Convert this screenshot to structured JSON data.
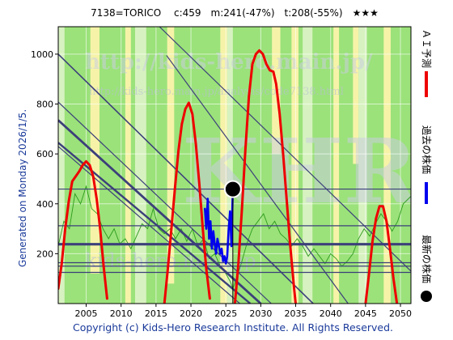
{
  "header": {
    "title": "7138=TORICO　 c:459　m:241(-47%)　t:208(-55%)　★★★"
  },
  "side_text": "Generated on Monday 2026/1/5.",
  "footer": "Copyright (c) Kids-Hero Research Institute. All Rights Reserved.",
  "watermark": {
    "url": "http://kids-hero.main.jp/",
    "sub": "http://kids-hero.main.jp/analysis/code7138.html",
    "big": "KHRI",
    "bottom": "kids-hero.main.jp"
  },
  "legend": [
    {
      "label": "ＡＩ予測",
      "color": "#ee0000",
      "marker": "line"
    },
    {
      "label": "過去の株価",
      "color": "#0000ee",
      "marker": "line"
    },
    {
      "label": "最新の株価",
      "color": "#000000",
      "marker": "dot"
    }
  ],
  "colors": {
    "green": "#9be27a",
    "yellow": "#f6f3a8",
    "lightgreen": "#d7f2c0",
    "trend": "#3c3f7a",
    "thin_green": "#2d9b1c",
    "prediction": "#ee0000",
    "past": "#0000ee"
  },
  "chart_data": {
    "type": "line",
    "title": "7138=TORICO　 c:459　m:241(-47%)　t:208(-55%)　★★★",
    "xlim": [
      2001,
      2051.5
    ],
    "ylim": [
      0,
      1110
    ],
    "x_ticks": [
      2005,
      2010,
      2015,
      2020,
      2025,
      2030,
      2035,
      2040,
      2045,
      2050
    ],
    "y_ticks": [
      200,
      400,
      600,
      800,
      1000
    ],
    "grid": true,
    "legend_placement": "right",
    "current_price": {
      "year": 2026.0,
      "value": 459
    },
    "horizontal_levels": [
      {
        "value": 459,
        "width": 1.2
      },
      {
        "value": 312,
        "width": 1.2
      },
      {
        "value": 238,
        "width": 3.2
      },
      {
        "value": 164,
        "width": 1.2
      },
      {
        "value": 150,
        "width": 1.2
      },
      {
        "value": 125,
        "width": 1.2
      }
    ],
    "trend_lines": [
      {
        "from": [
          2001,
          1000
        ],
        "to": [
          2037.5,
          0
        ],
        "width": 1.6
      },
      {
        "from": [
          2001,
          808
        ],
        "to": [
          2031.5,
          0
        ],
        "width": 1.2
      },
      {
        "from": [
          2001,
          735
        ],
        "to": [
          2030.0,
          0
        ],
        "width": 2.8
      },
      {
        "from": [
          2001,
          645
        ],
        "to": [
          2028.5,
          0
        ],
        "width": 2.4
      },
      {
        "from": [
          2001,
          630
        ],
        "to": [
          2027.0,
          0
        ],
        "width": 1.2
      },
      {
        "from": [
          2016.5,
          995
        ],
        "to": [
          2042.5,
          0
        ],
        "width": 1.2
      },
      {
        "from": [
          2015.5,
          1110
        ],
        "to": [
          2051.5,
          130
        ],
        "width": 1.2
      }
    ],
    "band_series": [
      [
        2001,
        700
      ],
      [
        2002,
        760
      ],
      [
        2003,
        1110
      ],
      [
        2004,
        1110
      ],
      [
        2005,
        1110
      ],
      [
        2006,
        1110
      ],
      [
        2007,
        1110
      ],
      [
        2008,
        1110
      ],
      [
        2009,
        1110
      ],
      [
        2010,
        1110
      ],
      [
        2011,
        1110
      ],
      [
        2012,
        1110
      ],
      [
        2013,
        1110
      ],
      [
        2014,
        1110
      ],
      [
        2015,
        1110
      ],
      [
        2016,
        1110
      ],
      [
        2017,
        1110
      ],
      [
        2018,
        1110
      ],
      [
        2019,
        1110
      ],
      [
        2020,
        1110
      ],
      [
        2021,
        1110
      ],
      [
        2022,
        1110
      ],
      [
        2023,
        1110
      ],
      [
        2024,
        1110
      ],
      [
        2025,
        1110
      ],
      [
        2026,
        1110
      ],
      [
        2027,
        1110
      ],
      [
        2028,
        1110
      ],
      [
        2029,
        1110
      ],
      [
        2030,
        1110
      ],
      [
        2031,
        1110
      ],
      [
        2032,
        1110
      ],
      [
        2033,
        1110
      ],
      [
        2034,
        1110
      ],
      [
        2035,
        1110
      ],
      [
        2036,
        1110
      ],
      [
        2037,
        1110
      ],
      [
        2038,
        1110
      ],
      [
        2039,
        1110
      ],
      [
        2040,
        1110
      ],
      [
        2041,
        1110
      ],
      [
        2042,
        1110
      ],
      [
        2043,
        1110
      ],
      [
        2044,
        1110
      ],
      [
        2045,
        1110
      ],
      [
        2046,
        1110
      ],
      [
        2047,
        1110
      ],
      [
        2048,
        1110
      ],
      [
        2049,
        1110
      ],
      [
        2050,
        1110
      ],
      [
        2051.5,
        1110
      ]
    ],
    "yellow_bands": [
      [
        2005.6,
        2006.9,
        120,
        1110
      ],
      [
        2010.6,
        2011.4,
        0,
        1110
      ],
      [
        2016.6,
        2017.6,
        80,
        1110
      ],
      [
        2024.2,
        2025.2,
        0,
        1110
      ],
      [
        2031.6,
        2032.8,
        600,
        1110
      ],
      [
        2034.4,
        2035.4,
        0,
        1110
      ],
      [
        2040.4,
        2041.2,
        0,
        1110
      ],
      [
        2043.2,
        2044.0,
        560,
        1110
      ],
      [
        2047.6,
        2048.6,
        0,
        1110
      ]
    ],
    "lightgreen_bands": [
      [
        2001.0,
        2001.9,
        0,
        1110
      ],
      [
        2012.0,
        2013.6,
        0,
        1110
      ],
      [
        2025.2,
        2026.0,
        0,
        1110
      ],
      [
        2036.0,
        2037.4,
        0,
        1110
      ],
      [
        2044.0,
        2045.2,
        0,
        1110
      ]
    ],
    "series": [
      {
        "name": "ＡＩ予測",
        "color": "#ee0000",
        "width": 3,
        "segments": [
          [
            [
              2001.0,
              60
            ],
            [
              2001.5,
              160
            ],
            [
              2002.0,
              300
            ],
            [
              2002.5,
              410
            ],
            [
              2003.0,
              490
            ],
            [
              2003.5,
              510
            ],
            [
              2004.0,
              530
            ],
            [
              2004.5,
              555
            ],
            [
              2005.0,
              570
            ],
            [
              2005.5,
              555
            ],
            [
              2006.0,
              510
            ],
            [
              2006.5,
              420
            ],
            [
              2007.0,
              300
            ],
            [
              2007.5,
              150
            ],
            [
              2008.0,
              20
            ]
          ],
          [
            [
              2016.2,
              0
            ],
            [
              2016.7,
              140
            ],
            [
              2017.2,
              300
            ],
            [
              2017.7,
              460
            ],
            [
              2018.2,
              610
            ],
            [
              2018.7,
              720
            ],
            [
              2019.2,
              780
            ],
            [
              2019.7,
              805
            ],
            [
              2020.2,
              760
            ],
            [
              2020.7,
              640
            ],
            [
              2021.2,
              480
            ],
            [
              2021.7,
              300
            ],
            [
              2022.2,
              140
            ],
            [
              2022.7,
              20
            ]
          ],
          [
            [
              2026.3,
              0
            ],
            [
              2026.8,
              160
            ],
            [
              2027.3,
              380
            ],
            [
              2027.8,
              620
            ],
            [
              2028.3,
              830
            ],
            [
              2028.8,
              960
            ],
            [
              2029.3,
              1000
            ],
            [
              2029.8,
              1015
            ],
            [
              2030.3,
              1000
            ],
            [
              2030.8,
              960
            ],
            [
              2031.3,
              935
            ],
            [
              2031.8,
              930
            ],
            [
              2032.2,
              880
            ],
            [
              2032.7,
              760
            ],
            [
              2033.2,
              600
            ],
            [
              2033.7,
              420
            ],
            [
              2034.2,
              240
            ],
            [
              2034.7,
              80
            ],
            [
              2035.0,
              0
            ]
          ],
          [
            [
              2045.0,
              0
            ],
            [
              2045.5,
              120
            ],
            [
              2046.0,
              250
            ],
            [
              2046.5,
              340
            ],
            [
              2047.0,
              390
            ],
            [
              2047.5,
              390
            ],
            [
              2048.0,
              330
            ],
            [
              2048.5,
              220
            ],
            [
              2049.0,
              100
            ],
            [
              2049.5,
              0
            ]
          ]
        ]
      },
      {
        "name": "過去の株価",
        "color": "#0000ee",
        "width": 2.6,
        "segments": [
          [
            [
              2022.0,
              380
            ],
            [
              2022.2,
              300
            ],
            [
              2022.4,
              420
            ],
            [
              2022.6,
              260
            ],
            [
              2022.8,
              330
            ],
            [
              2023.0,
              220
            ],
            [
              2023.2,
              290
            ],
            [
              2023.4,
              240
            ],
            [
              2023.6,
              200
            ],
            [
              2023.8,
              260
            ],
            [
              2024.0,
              230
            ],
            [
              2024.2,
              200
            ],
            [
              2024.4,
              220
            ],
            [
              2024.6,
              170
            ],
            [
              2024.8,
              190
            ],
            [
              2025.0,
              160
            ],
            [
              2025.2,
              190
            ],
            [
              2025.4,
              300
            ],
            [
              2025.6,
              370
            ],
            [
              2025.8,
              230
            ],
            [
              2026.0,
              459
            ]
          ]
        ]
      }
    ],
    "green_line": [
      [
        2001.0,
        230
      ],
      [
        2001.8,
        330
      ],
      [
        2002.6,
        300
      ],
      [
        2003.4,
        440
      ],
      [
        2004.2,
        400
      ],
      [
        2005.0,
        470
      ],
      [
        2005.8,
        380
      ],
      [
        2006.6,
        360
      ],
      [
        2007.4,
        300
      ],
      [
        2008.2,
        260
      ],
      [
        2009.0,
        300
      ],
      [
        2009.8,
        240
      ],
      [
        2010.6,
        260
      ],
      [
        2011.4,
        220
      ],
      [
        2012.2,
        270
      ],
      [
        2013.0,
        320
      ],
      [
        2013.8,
        300
      ],
      [
        2014.6,
        380
      ],
      [
        2015.4,
        300
      ],
      [
        2016.2,
        280
      ],
      [
        2017.0,
        300
      ],
      [
        2017.8,
        260
      ],
      [
        2018.6,
        300
      ],
      [
        2019.4,
        250
      ],
      [
        2020.2,
        300
      ],
      [
        2021.0,
        230
      ],
      [
        2021.8,
        260
      ],
      [
        2022.6,
        180
      ],
      [
        2023.4,
        200
      ],
      [
        2024.2,
        150
      ],
      [
        2025.0,
        120
      ],
      [
        2025.6,
        90
      ],
      [
        2026.0,
        60
      ],
      [
        2026.4,
        90
      ],
      [
        2027.2,
        160
      ],
      [
        2028.0,
        240
      ],
      [
        2028.8,
        300
      ],
      [
        2029.6,
        330
      ],
      [
        2030.4,
        360
      ],
      [
        2031.2,
        300
      ],
      [
        2032.0,
        330
      ],
      [
        2032.8,
        280
      ],
      [
        2033.6,
        260
      ],
      [
        2034.4,
        230
      ],
      [
        2035.2,
        260
      ],
      [
        2036.0,
        230
      ],
      [
        2036.8,
        190
      ],
      [
        2037.6,
        220
      ],
      [
        2038.4,
        190
      ],
      [
        2039.2,
        160
      ],
      [
        2040.0,
        200
      ],
      [
        2040.8,
        180
      ],
      [
        2041.6,
        150
      ],
      [
        2042.4,
        170
      ],
      [
        2043.2,
        200
      ],
      [
        2044.0,
        260
      ],
      [
        2044.8,
        300
      ],
      [
        2045.6,
        270
      ],
      [
        2046.4,
        320
      ],
      [
        2047.2,
        360
      ],
      [
        2048.0,
        330
      ],
      [
        2048.8,
        290
      ],
      [
        2049.6,
        330
      ],
      [
        2050.4,
        400
      ],
      [
        2051.5,
        430
      ]
    ]
  }
}
